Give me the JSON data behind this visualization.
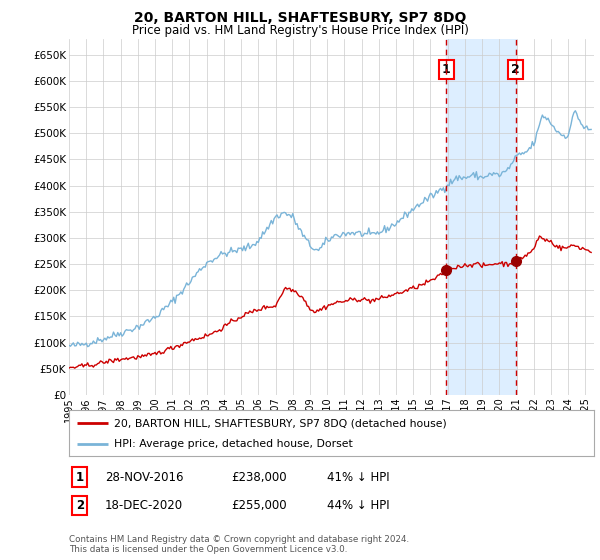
{
  "title": "20, BARTON HILL, SHAFTESBURY, SP7 8DQ",
  "subtitle": "Price paid vs. HM Land Registry's House Price Index (HPI)",
  "hpi_label": "HPI: Average price, detached house, Dorset",
  "property_label": "20, BARTON HILL, SHAFTESBURY, SP7 8DQ (detached house)",
  "footer": "Contains HM Land Registry data © Crown copyright and database right 2024.\nThis data is licensed under the Open Government Licence v3.0.",
  "sale1_date": "28-NOV-2016",
  "sale1_price": 238000,
  "sale1_pct": "41% ↓ HPI",
  "sale2_date": "18-DEC-2020",
  "sale2_price": 255000,
  "sale2_pct": "44% ↓ HPI",
  "sale1_x": 2016.91,
  "sale2_x": 2020.96,
  "hpi_color": "#7ab4d8",
  "property_color": "#cc0000",
  "highlight_color": "#ddeeff",
  "vline_color": "#cc0000",
  "background_color": "#ffffff",
  "grid_color": "#cccccc",
  "ylim": [
    0,
    680000
  ],
  "xlim_start": 1995.0,
  "xlim_end": 2025.5,
  "yticks": [
    0,
    50000,
    100000,
    150000,
    200000,
    250000,
    300000,
    350000,
    400000,
    450000,
    500000,
    550000,
    600000,
    650000
  ],
  "ytick_labels": [
    "£0",
    "£50K",
    "£100K",
    "£150K",
    "£200K",
    "£250K",
    "£300K",
    "£350K",
    "£400K",
    "£450K",
    "£500K",
    "£550K",
    "£600K",
    "£650K"
  ],
  "xtick_years": [
    1995,
    1996,
    1997,
    1998,
    1999,
    2000,
    2001,
    2002,
    2003,
    2004,
    2005,
    2006,
    2007,
    2008,
    2009,
    2010,
    2011,
    2012,
    2013,
    2014,
    2015,
    2016,
    2017,
    2018,
    2019,
    2020,
    2021,
    2022,
    2023,
    2024,
    2025
  ]
}
